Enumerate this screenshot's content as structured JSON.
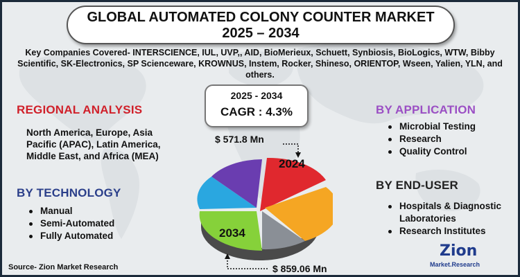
{
  "title": {
    "line1": "GLOBAL AUTOMATED COLONY COUNTER MARKET",
    "line2": "2025 – 2034"
  },
  "companies_text": "Key Companies Covered- INTERSCIENCE, IUL, UVP,, AID, BioMerieux, Schuett, Synbiosis, BioLogics, WTW, Bibby Scientific, SK-Electronics, SP Scienceware, KROWNUS, Instem, Rocker, Shineso, ORIENTOP, Wseen, Yalien, YLN, and others.",
  "cagr": {
    "period": "2025 - 2034",
    "value": "CAGR : 4.3%"
  },
  "regional": {
    "heading": "REGIONAL ANALYSIS",
    "text": "North America, Europe, Asia Pacific (APAC), Latin America, Middle East, and Africa (MEA)"
  },
  "technology": {
    "heading": "BY TECHNOLOGY",
    "items": [
      "Manual",
      "Semi-Automated",
      "Fully Automated"
    ]
  },
  "application": {
    "heading": "BY APPLICATION",
    "items": [
      "Microbial Testing",
      "Research",
      "Quality Control"
    ]
  },
  "end_user": {
    "heading": "BY END-USER",
    "items": [
      "Hospitals & Diagnostic Laboratories",
      "Research Institutes"
    ]
  },
  "pie": {
    "label_2024": "2024",
    "label_2034": "2034",
    "value_2025": "$ 571.8 Mn",
    "value_2034": "$ 859.06 Mn",
    "colors": [
      "#e0282e",
      "#f5a623",
      "#8a8f96",
      "#86d13a",
      "#2aa7e0",
      "#6a3db0"
    ]
  },
  "source": "Source- Zion Market Research",
  "logo": {
    "name": "Zion",
    "sub": "Market.Research"
  },
  "colors": {
    "regional_heading": "#d0202a",
    "technology_heading": "#2b3f8a",
    "application_heading": "#9b4fc4",
    "background": "#e9ecee"
  }
}
